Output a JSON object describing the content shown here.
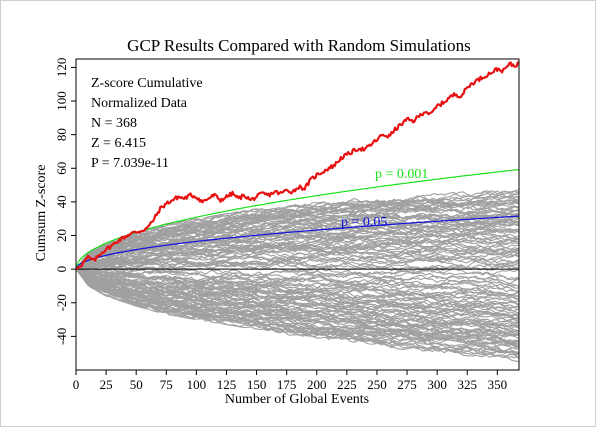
{
  "chart_data": {
    "type": "line",
    "title": "GCP Results Compared with Random Simulations",
    "xlabel": "Number of Global Events",
    "ylabel": "Cumsum Z-score",
    "xlim": [
      0,
      368
    ],
    "ylim": [
      -60,
      125
    ],
    "x_ticks": [
      0,
      25,
      50,
      75,
      100,
      125,
      150,
      175,
      200,
      225,
      250,
      275,
      300,
      325,
      350
    ],
    "y_ticks": [
      -40,
      -20,
      0,
      20,
      40,
      60,
      80,
      100,
      120
    ],
    "tick_labels_x": [
      "0",
      "25",
      "50",
      "75",
      "100",
      "125",
      "150",
      "175",
      "200",
      "225",
      "250",
      "275",
      "300",
      "325",
      "350"
    ],
    "tick_labels_y": [
      "-40",
      "-20",
      "0",
      "20",
      "40",
      "60",
      "80",
      "100",
      "120"
    ],
    "annotations": [
      "Z-score Cumulative",
      "Normalized Data",
      "N = 368",
      "Z = 6.415",
      "P = 7.039e-11"
    ],
    "reference_curves": [
      {
        "name": "p = 0.001",
        "color": "#19e019",
        "multiplier": 3.09
      },
      {
        "name": "p = 0.05",
        "color": "#1010e0",
        "multiplier": 1.645
      }
    ],
    "simulation_envelope": {
      "color": "#a0a0a0",
      "x": [
        0,
        10,
        25,
        50,
        75,
        100,
        150,
        200,
        250,
        300,
        350,
        368
      ],
      "upper": [
        0,
        10,
        16,
        22,
        27,
        30,
        36,
        40,
        43,
        45,
        47,
        48
      ],
      "lower": [
        0,
        -10,
        -16,
        -22,
        -27,
        -30,
        -36,
        -42,
        -46,
        -50,
        -53,
        -55
      ]
    },
    "series": [
      {
        "color": "#e81010",
        "x": [
          0,
          5,
          10,
          15,
          20,
          25,
          30,
          35,
          40,
          45,
          50,
          55,
          60,
          65,
          70,
          75,
          80,
          85,
          90,
          95,
          100,
          105,
          110,
          115,
          120,
          125,
          130,
          135,
          140,
          145,
          150,
          155,
          160,
          165,
          170,
          175,
          180,
          185,
          190,
          195,
          200,
          205,
          210,
          215,
          220,
          225,
          230,
          235,
          240,
          245,
          250,
          255,
          260,
          265,
          270,
          275,
          280,
          285,
          290,
          295,
          300,
          305,
          310,
          315,
          320,
          325,
          330,
          335,
          340,
          345,
          350,
          355,
          360,
          365,
          368
        ],
        "values": [
          0,
          3,
          7,
          5,
          9,
          12,
          14,
          17,
          19,
          21,
          22,
          23,
          25,
          30,
          36,
          39,
          41,
          43,
          42,
          44,
          43,
          40,
          42,
          44,
          41,
          43,
          45,
          42,
          44,
          41,
          43,
          45,
          44,
          46,
          45,
          47,
          46,
          49,
          48,
          53,
          56,
          58,
          60,
          62,
          66,
          68,
          70,
          72,
          71,
          74,
          77,
          80,
          79,
          83,
          86,
          89,
          88,
          91,
          94,
          92,
          97,
          99,
          102,
          104,
          103,
          108,
          111,
          113,
          115,
          117,
          119,
          118,
          122,
          121,
          123
        ]
      }
    ]
  }
}
